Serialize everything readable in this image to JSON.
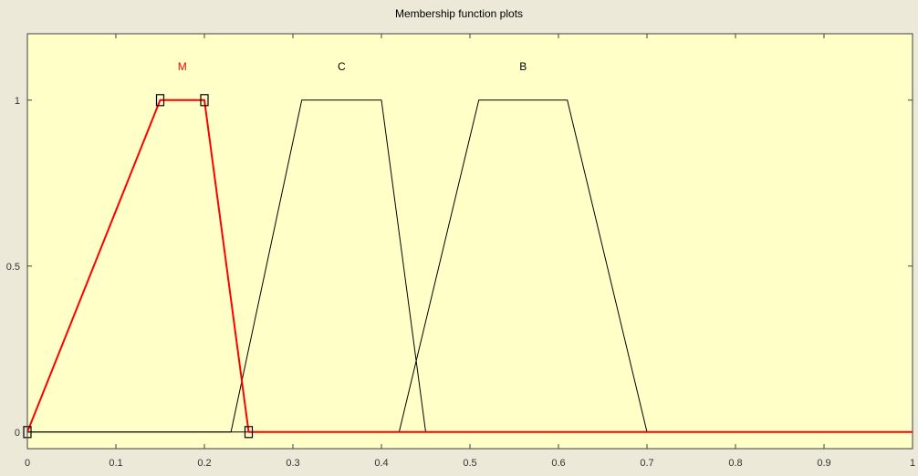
{
  "chart_data": {
    "type": "line",
    "title": "Membership function plots",
    "xlim": [
      0,
      1
    ],
    "ylim": [
      -0.05,
      1.2
    ],
    "x_ticks": [
      0,
      0.1,
      0.2,
      0.3,
      0.4,
      0.5,
      0.6,
      0.7,
      0.8,
      0.9,
      1
    ],
    "x_tick_labels": [
      "0",
      "0.1",
      "0.2",
      "0.3",
      "0.4",
      "0.5",
      "0.6",
      "0.7",
      "0.8",
      "0.9",
      "1"
    ],
    "y_ticks": [
      0,
      0.5,
      1
    ],
    "y_tick_labels": [
      "0",
      "0.5",
      "1"
    ],
    "grid": false,
    "plot_background": "#ffffc8",
    "series": [
      {
        "name": "M",
        "selected": true,
        "color": "#ff0000",
        "points": [
          [
            0,
            0
          ],
          [
            0.15,
            1
          ],
          [
            0.2,
            1
          ],
          [
            0.25,
            0
          ],
          [
            1,
            0
          ]
        ]
      },
      {
        "name": "C",
        "selected": false,
        "color": "#000000",
        "points": [
          [
            0,
            0
          ],
          [
            0.23,
            0
          ],
          [
            0.31,
            1
          ],
          [
            0.4,
            1
          ],
          [
            0.45,
            0
          ],
          [
            1,
            0
          ]
        ]
      },
      {
        "name": "B",
        "selected": false,
        "color": "#000000",
        "points": [
          [
            0,
            0
          ],
          [
            0.42,
            0
          ],
          [
            0.51,
            1
          ],
          [
            0.61,
            1
          ],
          [
            0.7,
            0
          ],
          [
            1,
            0
          ]
        ]
      }
    ],
    "handles": [
      [
        0,
        0
      ],
      [
        0.15,
        1
      ],
      [
        0.2,
        1
      ],
      [
        0.25,
        0
      ]
    ]
  }
}
